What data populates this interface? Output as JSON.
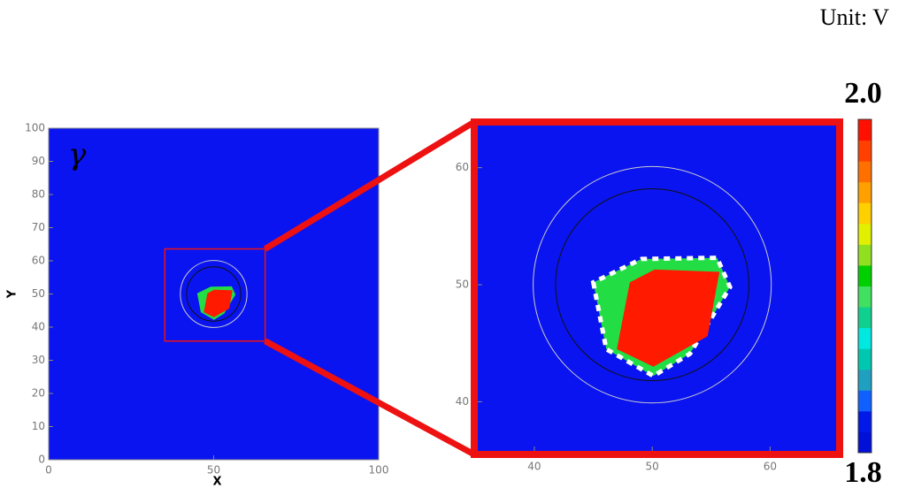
{
  "unit_label": "Unit: V",
  "chart_data": [
    {
      "type": "contour",
      "label": "γ",
      "xlabel": "X",
      "ylabel": "Y",
      "xlim": [
        0,
        100
      ],
      "ylim": [
        0,
        100
      ],
      "xticks": [
        0,
        50,
        100
      ],
      "yticks": [
        0,
        10,
        20,
        30,
        40,
        50,
        60,
        70,
        80,
        90,
        100
      ],
      "background": "#0a14f0"
    },
    {
      "type": "contour",
      "xlim": [
        35.2,
        65.6
      ],
      "ylim": [
        35.8,
        63.6
      ],
      "xticks": [
        40,
        50,
        60
      ],
      "yticks": [
        40,
        50,
        60
      ],
      "background": "#0a14f0",
      "frame_color": "#ee1111"
    }
  ],
  "regions": [
    {
      "color": "#22dd44",
      "x": [
        45.0,
        46.1,
        50.1,
        53.2,
        56.6,
        55.5,
        49.1
      ],
      "y": [
        50.2,
        44.5,
        42.2,
        44.1,
        49.8,
        52.3,
        52.2
      ],
      "outline": "#ffffff"
    },
    {
      "color": "#ff1a00",
      "x": [
        47.0,
        50.1,
        54.7,
        55.7,
        50.2,
        48.1
      ],
      "y": [
        44.5,
        43.0,
        45.6,
        51.1,
        51.3,
        50.2
      ]
    }
  ],
  "circles": [
    {
      "cx": 50,
      "cy": 50,
      "r": 10.1,
      "color": "#cccccc"
    },
    {
      "cx": 50,
      "cy": 50,
      "r": 8.2,
      "color": "#111111"
    }
  ],
  "colorbar": {
    "vlim": [
      1.8,
      2.0
    ],
    "ticks": [
      {
        "value": 2.0,
        "label": "2.0"
      },
      {
        "value": 1.8,
        "label": "1.8"
      }
    ],
    "colors": [
      "#0010d8",
      "#0018e8",
      "#1060ff",
      "#20a0c0",
      "#00c8b0",
      "#00e8e0",
      "#10d090",
      "#40e060",
      "#00d000",
      "#90e020",
      "#e0f000",
      "#ffd000",
      "#ffa000",
      "#ff7000",
      "#ff4000",
      "#ff1000"
    ]
  }
}
